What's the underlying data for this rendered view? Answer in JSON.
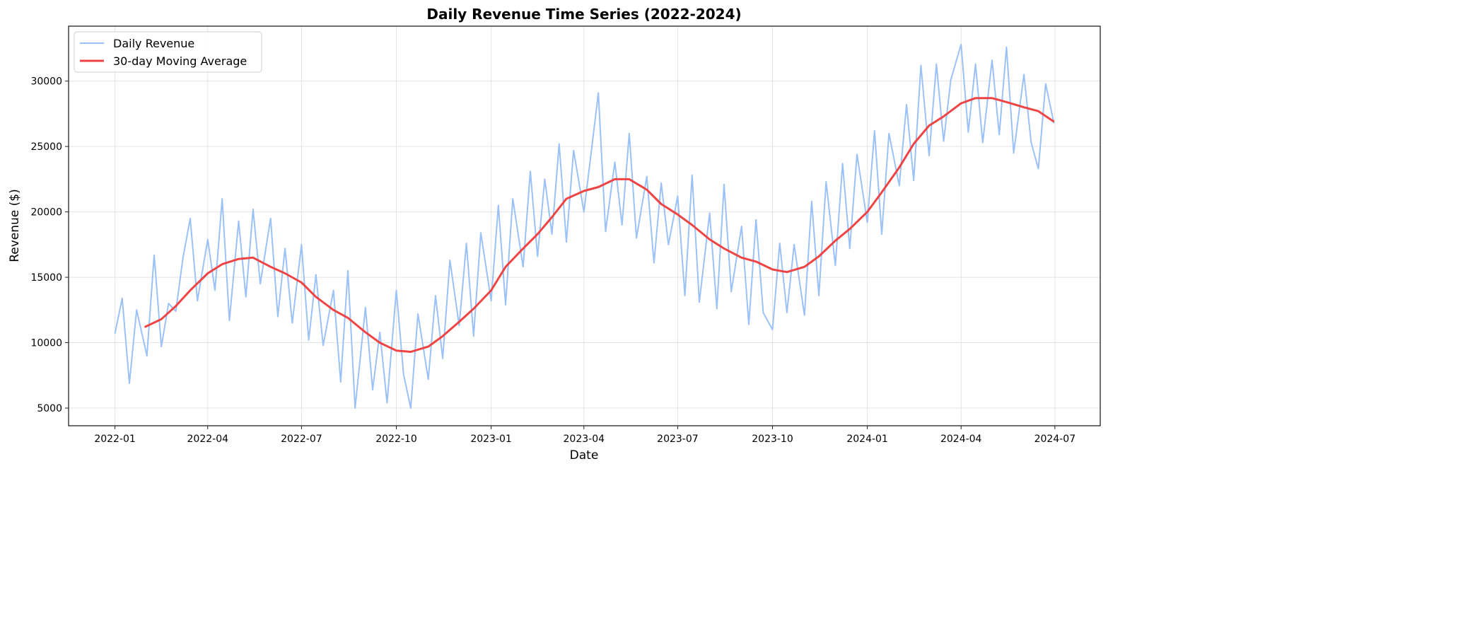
{
  "chart_data": {
    "type": "line",
    "title": "Daily Revenue Time Series (2022-2024)",
    "xlabel": "Date",
    "ylabel": "Revenue ($)",
    "xlim": [
      "2021-11-17",
      "2024-08-14"
    ],
    "ylim": [
      3650,
      34200
    ],
    "grid": true,
    "legend_position": "top-left",
    "x_ticks": [
      "2022-01",
      "2022-04",
      "2022-07",
      "2022-10",
      "2023-01",
      "2023-04",
      "2023-07",
      "2023-10",
      "2024-01",
      "2024-04",
      "2024-07"
    ],
    "y_ticks": [
      5000,
      10000,
      15000,
      20000,
      25000,
      30000
    ],
    "series": [
      {
        "name": "Daily Revenue",
        "color": "#9bc1f7",
        "x": [
          "2022-01-01",
          "2022-01-08",
          "2022-01-15",
          "2022-01-22",
          "2022-02-01",
          "2022-02-08",
          "2022-02-15",
          "2022-02-22",
          "2022-03-01",
          "2022-03-08",
          "2022-03-15",
          "2022-03-22",
          "2022-04-01",
          "2022-04-08",
          "2022-04-15",
          "2022-04-22",
          "2022-05-01",
          "2022-05-08",
          "2022-05-15",
          "2022-05-22",
          "2022-06-01",
          "2022-06-08",
          "2022-06-15",
          "2022-06-22",
          "2022-07-01",
          "2022-07-08",
          "2022-07-15",
          "2022-07-22",
          "2022-08-01",
          "2022-08-08",
          "2022-08-15",
          "2022-08-22",
          "2022-09-01",
          "2022-09-08",
          "2022-09-15",
          "2022-09-22",
          "2022-10-01",
          "2022-10-08",
          "2022-10-15",
          "2022-10-22",
          "2022-11-01",
          "2022-11-08",
          "2022-11-15",
          "2022-11-22",
          "2022-12-01",
          "2022-12-08",
          "2022-12-15",
          "2022-12-22",
          "2023-01-01",
          "2023-01-08",
          "2023-01-15",
          "2023-01-22",
          "2023-02-01",
          "2023-02-08",
          "2023-02-15",
          "2023-02-22",
          "2023-03-01",
          "2023-03-08",
          "2023-03-15",
          "2023-03-22",
          "2023-04-01",
          "2023-04-08",
          "2023-04-15",
          "2023-04-22",
          "2023-05-01",
          "2023-05-08",
          "2023-05-15",
          "2023-05-22",
          "2023-06-01",
          "2023-06-08",
          "2023-06-15",
          "2023-06-22",
          "2023-07-01",
          "2023-07-08",
          "2023-07-15",
          "2023-07-22",
          "2023-08-01",
          "2023-08-08",
          "2023-08-15",
          "2023-08-22",
          "2023-09-01",
          "2023-09-08",
          "2023-09-15",
          "2023-09-22",
          "2023-10-01",
          "2023-10-08",
          "2023-10-15",
          "2023-10-22",
          "2023-11-01",
          "2023-11-08",
          "2023-11-15",
          "2023-11-22",
          "2023-12-01",
          "2023-12-08",
          "2023-12-15",
          "2023-12-22",
          "2024-01-01",
          "2024-01-08",
          "2024-01-15",
          "2024-01-22",
          "2024-02-01",
          "2024-02-08",
          "2024-02-15",
          "2024-02-22",
          "2024-03-01",
          "2024-03-08",
          "2024-03-15",
          "2024-03-22",
          "2024-04-01",
          "2024-04-08",
          "2024-04-15",
          "2024-04-22",
          "2024-05-01",
          "2024-05-08",
          "2024-05-15",
          "2024-05-22",
          "2024-06-01",
          "2024-06-08",
          "2024-06-15",
          "2024-06-22",
          "2024-06-30"
        ],
        "values": [
          10700,
          13400,
          6900,
          12500,
          9000,
          16700,
          9700,
          13000,
          12400,
          16500,
          19500,
          13200,
          17900,
          14000,
          21000,
          11700,
          19300,
          13500,
          20200,
          14500,
          19500,
          12000,
          17200,
          11500,
          17500,
          10200,
          15200,
          9800,
          14000,
          7000,
          15500,
          5000,
          12700,
          6400,
          10800,
          5400,
          14000,
          7600,
          5000,
          12200,
          7200,
          13600,
          8800,
          16300,
          11300,
          17600,
          10500,
          18400,
          13200,
          20500,
          12900,
          21000,
          15800,
          23100,
          16600,
          22500,
          18300,
          25200,
          17700,
          24700,
          20000,
          24500,
          29100,
          18500,
          23800,
          19000,
          26000,
          18000,
          22700,
          16100,
          22200,
          17500,
          21200,
          13600,
          22800,
          13100,
          19900,
          12600,
          22100,
          13900,
          18900,
          11400,
          19400,
          12300,
          11000,
          17600,
          12300,
          17500,
          12100,
          20800,
          13600,
          22300,
          15900,
          23700,
          17200,
          24400,
          19200,
          26200,
          18300,
          26000,
          22000,
          28200,
          22400,
          31200,
          24300,
          31300,
          25400,
          30100,
          32800,
          26100,
          31300,
          25300,
          31600,
          25900,
          32600,
          24500,
          30500,
          25300,
          23300,
          29800,
          26800
        ]
      },
      {
        "name": "30-day Moving Average",
        "color": "#ef4444",
        "x": [
          "2022-01-30",
          "2022-02-15",
          "2022-03-01",
          "2022-03-15",
          "2022-04-01",
          "2022-04-15",
          "2022-05-01",
          "2022-05-15",
          "2022-06-01",
          "2022-06-15",
          "2022-07-01",
          "2022-07-15",
          "2022-08-01",
          "2022-08-15",
          "2022-09-01",
          "2022-09-15",
          "2022-10-01",
          "2022-10-15",
          "2022-11-01",
          "2022-11-15",
          "2022-12-01",
          "2022-12-15",
          "2023-01-01",
          "2023-01-15",
          "2023-02-01",
          "2023-02-15",
          "2023-03-01",
          "2023-03-15",
          "2023-04-01",
          "2023-04-15",
          "2023-05-01",
          "2023-05-15",
          "2023-06-01",
          "2023-06-15",
          "2023-07-01",
          "2023-07-15",
          "2023-08-01",
          "2023-08-15",
          "2023-09-01",
          "2023-09-15",
          "2023-10-01",
          "2023-10-15",
          "2023-11-01",
          "2023-11-15",
          "2023-12-01",
          "2023-12-15",
          "2024-01-01",
          "2024-01-15",
          "2024-02-01",
          "2024-02-15",
          "2024-03-01",
          "2024-03-15",
          "2024-04-01",
          "2024-04-15",
          "2024-05-01",
          "2024-05-15",
          "2024-06-01",
          "2024-06-15",
          "2024-06-30"
        ],
        "values": [
          11200,
          11800,
          12800,
          14000,
          15300,
          16000,
          16400,
          16500,
          15800,
          15300,
          14600,
          13500,
          12500,
          11900,
          10800,
          10000,
          9400,
          9300,
          9700,
          10500,
          11600,
          12600,
          14000,
          15800,
          17200,
          18300,
          19600,
          21000,
          21600,
          21900,
          22500,
          22500,
          21700,
          20600,
          19800,
          19000,
          17900,
          17200,
          16500,
          16200,
          15600,
          15400,
          15800,
          16600,
          17800,
          18700,
          20000,
          21500,
          23400,
          25200,
          26600,
          27300,
          28300,
          28700,
          28700,
          28400,
          28000,
          27700,
          26900
        ]
      }
    ]
  }
}
